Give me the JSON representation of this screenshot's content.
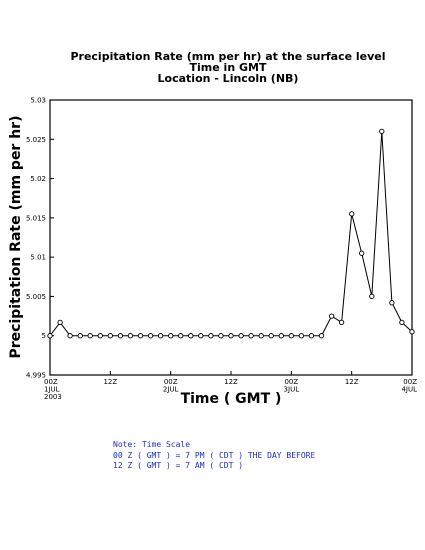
{
  "chart_data": {
    "type": "line",
    "title": [
      "Precipitation Rate (mm per hr) at the surface level",
      "Time in GMT",
      "Location - Lincoln (NB)"
    ],
    "xlabel": "Time ( GMT )",
    "ylabel": "Precipitation Rate (mm per hr)",
    "ylim": [
      4.995,
      5.03
    ],
    "yticks": [
      "4.995",
      "5",
      "5.005",
      "5.01",
      "5.015",
      "5.02",
      "5.025",
      "5.03"
    ],
    "xlim_hours": [
      0,
      72
    ],
    "xticks": [
      {
        "hours": 0,
        "lines": [
          "00Z",
          "1JUL",
          "2003"
        ]
      },
      {
        "hours": 12,
        "lines": [
          "12Z"
        ]
      },
      {
        "hours": 24,
        "lines": [
          "00Z",
          "2JUL"
        ]
      },
      {
        "hours": 36,
        "lines": [
          "12Z"
        ]
      },
      {
        "hours": 48,
        "lines": [
          "00Z",
          "3JUL"
        ]
      },
      {
        "hours": 60,
        "lines": [
          "12Z"
        ]
      },
      {
        "hours": 72,
        "lines": [
          "00Z",
          "4JUL"
        ]
      }
    ],
    "x_hours": [
      0,
      2,
      4,
      6,
      8,
      10,
      12,
      14,
      16,
      18,
      20,
      22,
      24,
      26,
      28,
      30,
      32,
      34,
      36,
      38,
      40,
      42,
      44,
      46,
      48,
      50,
      52,
      54,
      56,
      58,
      60,
      62,
      64,
      66,
      68,
      70,
      72
    ],
    "values": [
      5.0,
      5.0017,
      5.0,
      5.0,
      5.0,
      5.0,
      5.0,
      5.0,
      5.0,
      5.0,
      5.0,
      5.0,
      5.0,
      5.0,
      5.0,
      5.0,
      5.0,
      5.0,
      5.0,
      5.0,
      5.0,
      5.0,
      5.0,
      5.0,
      5.0,
      5.0,
      5.0,
      5.0,
      5.0025,
      5.0017,
      5.0155,
      5.0105,
      5.005,
      5.026,
      5.0042,
      5.0017,
      5.0005
    ],
    "grid": false
  },
  "note": [
    "Note: Time Scale",
    "00 Z ( GMT ) = 7 PM ( CDT ) THE DAY BEFORE",
    "12 Z ( GMT ) = 7 AM ( CDT )"
  ],
  "colors": {
    "line": "#000000",
    "note": "#1a2fd0"
  }
}
